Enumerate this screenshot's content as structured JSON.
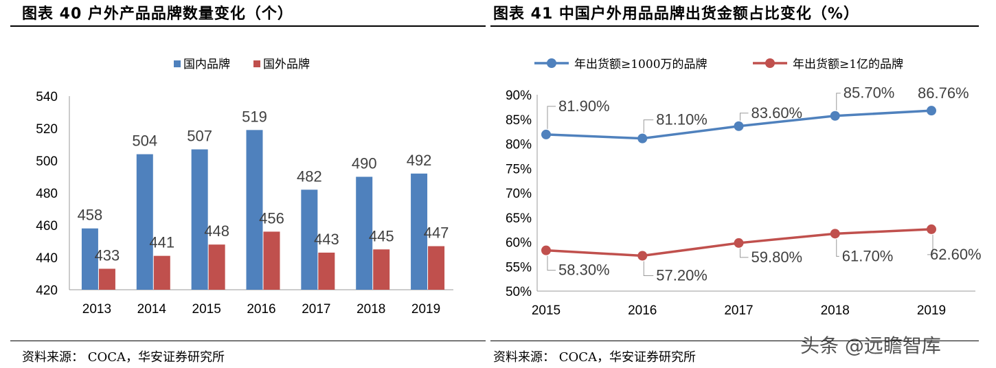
{
  "left": {
    "title": "图表 40 户外产品品牌数量变化（个）",
    "source": "资料来源：  COCA，华安证券研究所"
  },
  "right": {
    "title": "图表 41 中国户外用品品牌出货金额占比变化（%）",
    "source": "资料来源：  COCA，华安证券研究所"
  },
  "watermark": "头条 @远瞻智库",
  "chart_data": [
    {
      "type": "bar",
      "title": "图表 40 户外产品品牌数量变化（个）",
      "categories": [
        "2013",
        "2014",
        "2015",
        "2016",
        "2017",
        "2018",
        "2019"
      ],
      "series": [
        {
          "name": "国内品牌",
          "color": "#4F81BD",
          "values": [
            458,
            504,
            507,
            519,
            482,
            490,
            492
          ]
        },
        {
          "name": "国外品牌",
          "color": "#C0504D",
          "values": [
            433,
            441,
            448,
            456,
            443,
            445,
            447
          ]
        }
      ],
      "ylim": [
        420,
        540
      ],
      "yticks": [
        "420",
        "440",
        "460",
        "480",
        "500",
        "520",
        "540"
      ],
      "legend": "top",
      "grid": false
    },
    {
      "type": "line",
      "title": "图表 41 中国户外用品品牌出货金额占比变化（%）",
      "categories": [
        "2015",
        "2016",
        "2017",
        "2018",
        "2019"
      ],
      "series": [
        {
          "name": "年出货额≥1000万的品牌",
          "color": "#4F81BD",
          "values": [
            81.9,
            81.1,
            83.6,
            85.7,
            86.76
          ],
          "labels": [
            "81.90%",
            "81.10%",
            "83.60%",
            "85.70%",
            "86.76%"
          ]
        },
        {
          "name": "年出货额≥1亿的品牌",
          "color": "#C0504D",
          "values": [
            58.3,
            57.2,
            59.8,
            61.7,
            62.6
          ],
          "labels": [
            "58.30%",
            "57.20%",
            "59.80%",
            "61.70%",
            "62.60%"
          ]
        }
      ],
      "ylim": [
        50,
        90
      ],
      "yticks": [
        "50%",
        "55%",
        "60%",
        "65%",
        "70%",
        "75%",
        "80%",
        "85%",
        "90%"
      ],
      "legend": "top",
      "grid": false
    }
  ]
}
